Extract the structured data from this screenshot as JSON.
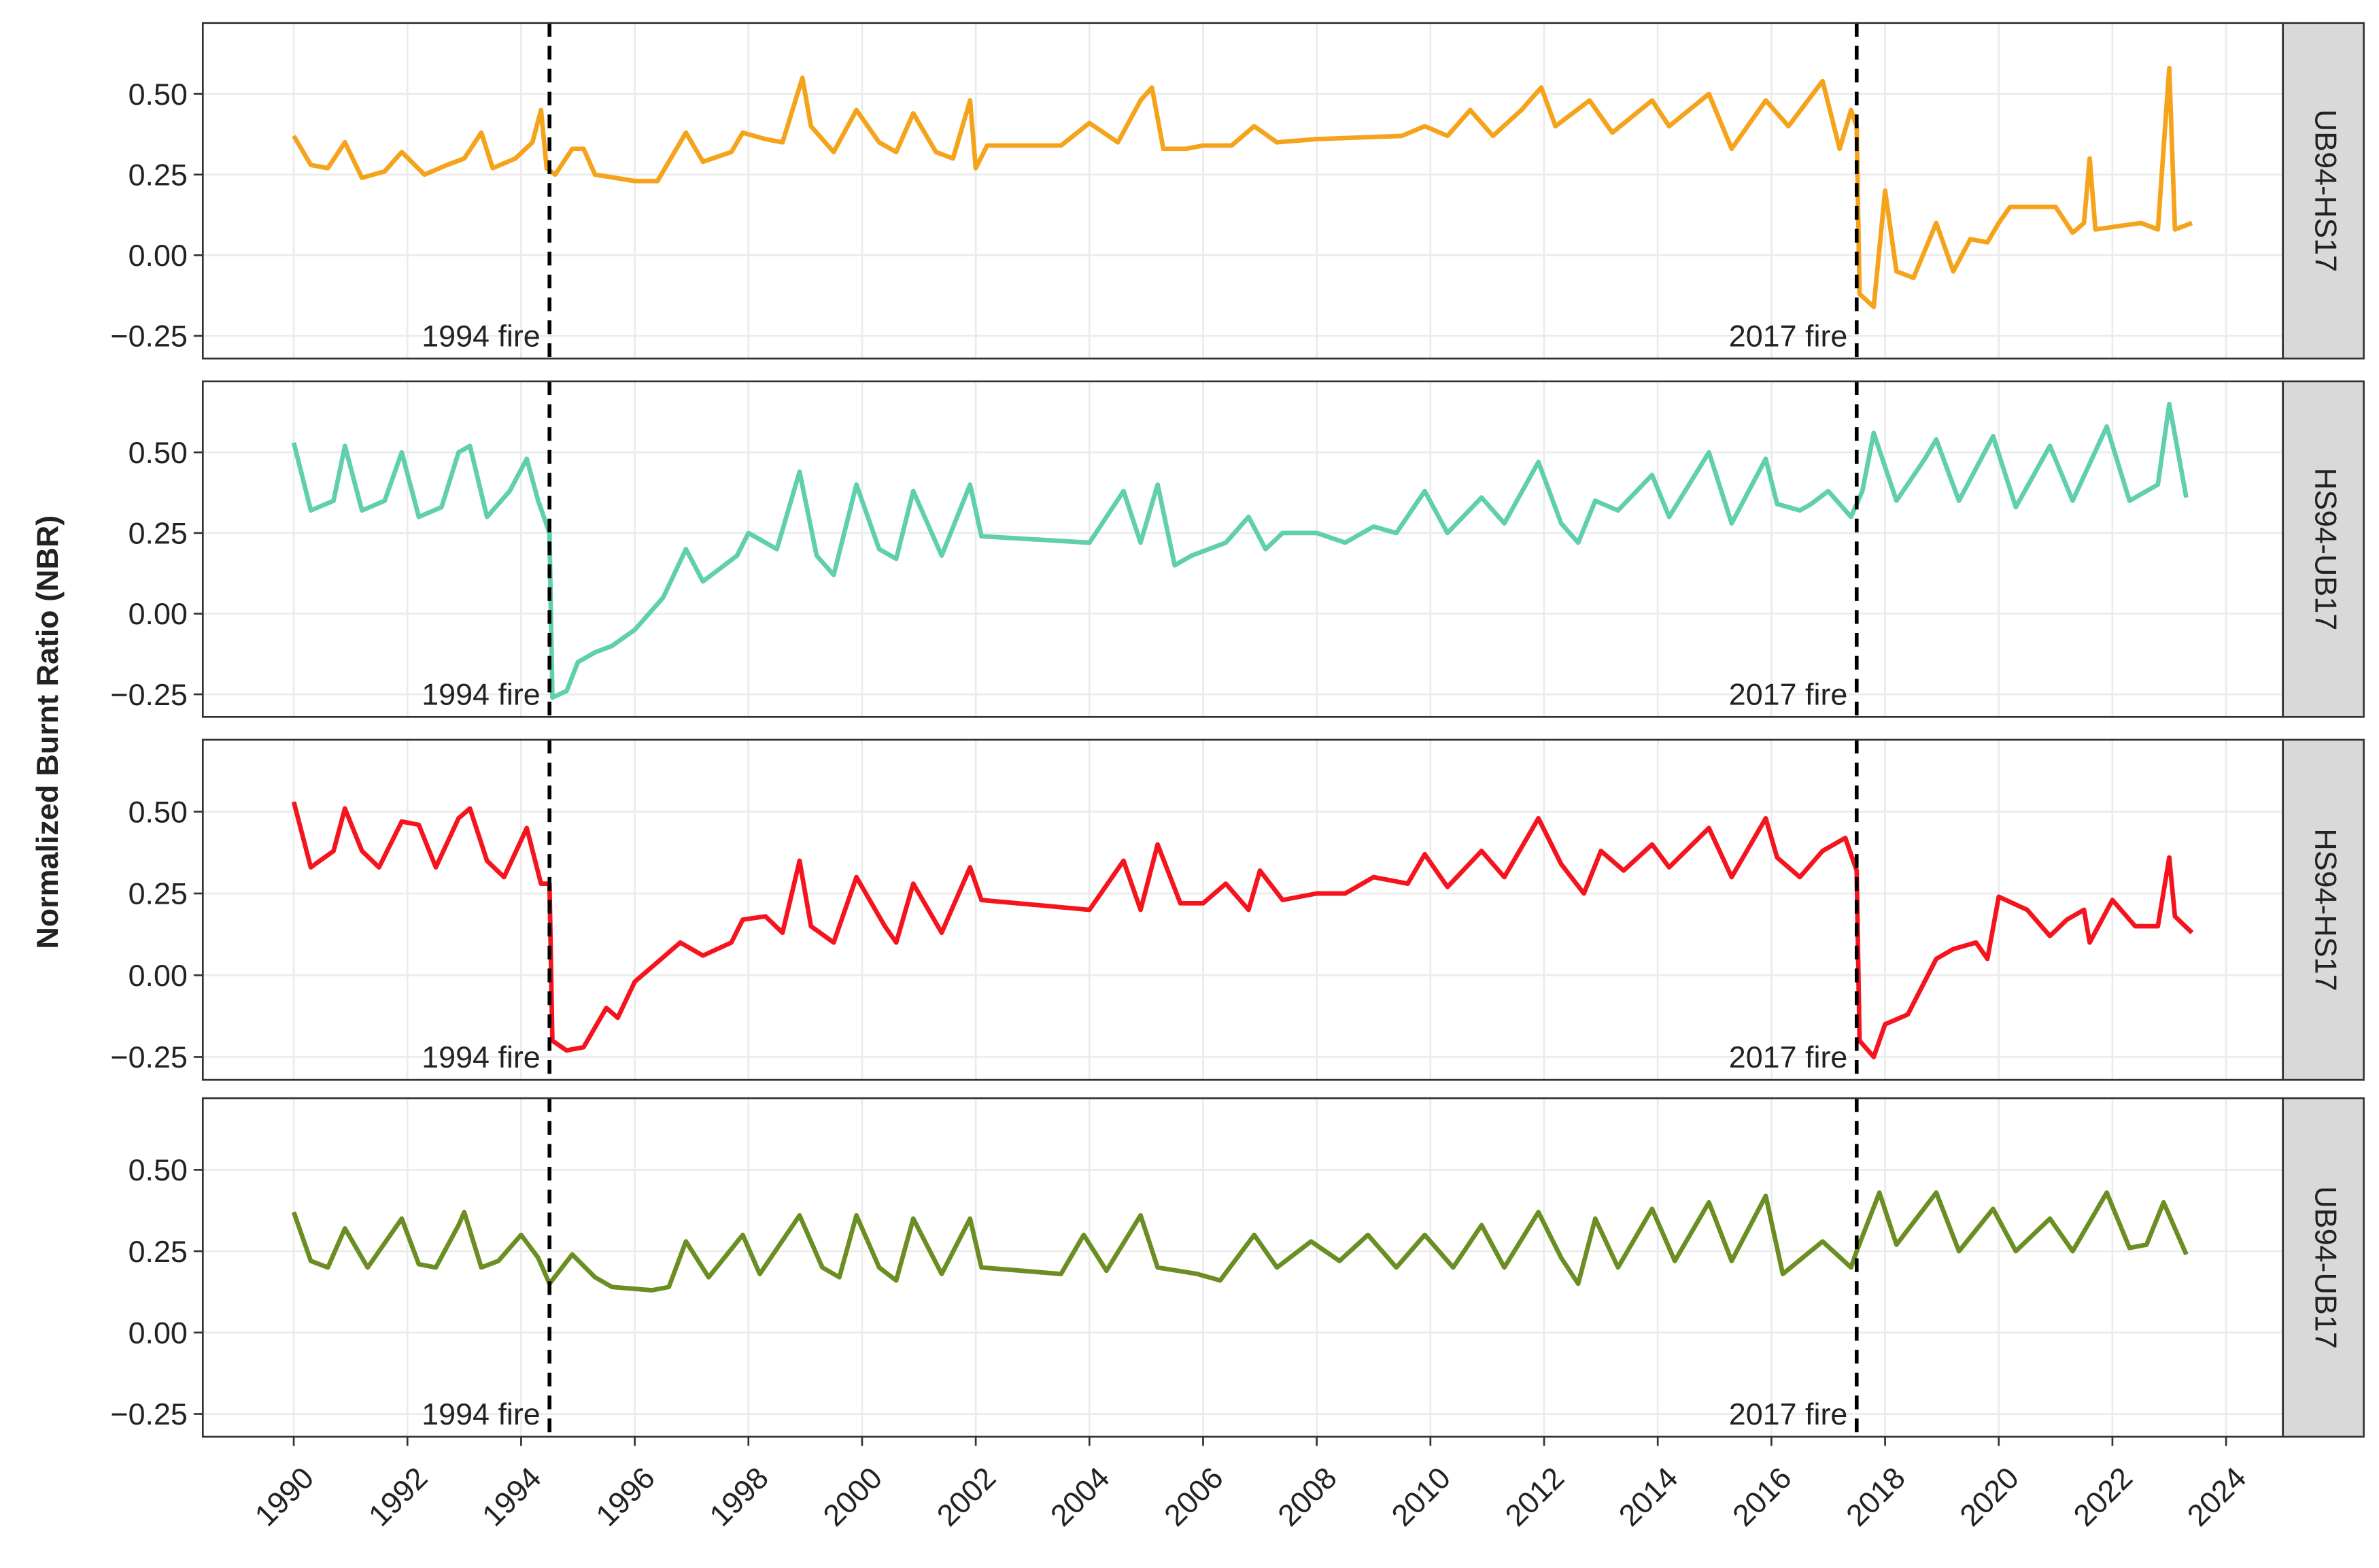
{
  "ylabel": "Normalized Burnt Ratio (NBR)",
  "chart_data": [
    {
      "type": "line",
      "xlim": [
        1988.4,
        2025.0
      ],
      "ylim": [
        -0.32,
        0.72
      ],
      "xticks": [
        1990,
        1992,
        1994,
        1996,
        1998,
        2000,
        2002,
        2004,
        2006,
        2008,
        2010,
        2012,
        2014,
        2016,
        2018,
        2020,
        2022,
        2024
      ],
      "yticks": [
        {
          "value": -0.25,
          "label": "−0.25"
        },
        {
          "value": 0,
          "label": "0.00"
        },
        {
          "value": 0.25,
          "label": "0.25"
        },
        {
          "value": 0.5,
          "label": "0.50"
        }
      ],
      "vlines": [
        {
          "x": 1994.5,
          "label": "1994 fire"
        },
        {
          "x": 2017.5,
          "label": "2017 fire"
        }
      ],
      "x": [
        1990.0,
        1990.3,
        1990.6,
        1990.9,
        1991.2,
        1991.6,
        1991.9,
        1992.3,
        1992.7,
        1993.0,
        1993.3,
        1993.5,
        1993.9,
        1994.2,
        1994.35,
        1994.45,
        1994.6,
        1994.9,
        1995.1,
        1995.3,
        1996.0,
        1996.4,
        1996.9,
        1997.2,
        1997.7,
        1997.9,
        1998.3,
        1998.6,
        1998.95,
        1999.1,
        1999.5,
        1999.9,
        2000.3,
        2000.6,
        2000.9,
        2001.3,
        2001.6,
        2001.9,
        2002.0,
        2002.2,
        2003.5,
        2004.0,
        2004.5,
        2004.9,
        2005.1,
        2005.3,
        2005.7,
        2006.0,
        2006.5,
        2006.9,
        2007.3,
        2008.0,
        2009.5,
        2009.9,
        2010.3,
        2010.7,
        2011.1,
        2011.6,
        2011.95,
        2012.2,
        2012.8,
        2013.2,
        2013.9,
        2014.2,
        2014.9,
        2015.3,
        2015.9,
        2016.3,
        2016.9,
        2017.2,
        2017.4,
        2017.5,
        2017.55,
        2017.8,
        2018.0,
        2018.2,
        2018.5,
        2018.9,
        2019.2,
        2019.5,
        2019.8,
        2020.0,
        2020.2,
        2021.0,
        2021.3,
        2021.5,
        2021.6,
        2021.7,
        2022.5,
        2022.8,
        2023.0,
        2023.1,
        2023.4
      ],
      "series": [
        {
          "name": "UB94-HS17",
          "color": "#f5a31b",
          "values": [
            0.37,
            0.28,
            0.27,
            0.35,
            0.24,
            0.26,
            0.32,
            0.25,
            0.28,
            0.3,
            0.38,
            0.27,
            0.3,
            0.35,
            0.45,
            0.27,
            0.25,
            0.33,
            0.33,
            0.25,
            0.23,
            0.23,
            0.38,
            0.29,
            0.32,
            0.38,
            0.36,
            0.35,
            0.55,
            0.4,
            0.32,
            0.45,
            0.35,
            0.32,
            0.44,
            0.32,
            0.3,
            0.48,
            0.27,
            0.34,
            0.34,
            0.41,
            0.35,
            0.48,
            0.52,
            0.33,
            0.33,
            0.34,
            0.34,
            0.4,
            0.35,
            0.36,
            0.37,
            0.4,
            0.37,
            0.45,
            0.37,
            0.45,
            0.52,
            0.4,
            0.48,
            0.38,
            0.48,
            0.4,
            0.5,
            0.33,
            0.48,
            0.4,
            0.54,
            0.33,
            0.45,
            0.4,
            -0.12,
            -0.16,
            0.2,
            -0.05,
            -0.07,
            0.1,
            -0.05,
            0.05,
            0.04,
            0.1,
            0.15,
            0.15,
            0.07,
            0.1,
            0.3,
            0.08,
            0.1,
            0.08,
            0.58,
            0.08,
            0.1
          ]
        }
      ]
    },
    {
      "type": "line",
      "xlim": [
        1988.4,
        2025.0
      ],
      "ylim": [
        -0.32,
        0.72
      ],
      "xticks": [
        1990,
        1992,
        1994,
        1996,
        1998,
        2000,
        2002,
        2004,
        2006,
        2008,
        2010,
        2012,
        2014,
        2016,
        2018,
        2020,
        2022,
        2024
      ],
      "yticks": [
        {
          "value": -0.25,
          "label": "−0.25"
        },
        {
          "value": 0,
          "label": "0.00"
        },
        {
          "value": 0.25,
          "label": "0.25"
        },
        {
          "value": 0.5,
          "label": "0.50"
        }
      ],
      "vlines": [
        {
          "x": 1994.5,
          "label": "1994 fire"
        },
        {
          "x": 2017.5,
          "label": "2017 fire"
        }
      ],
      "x": [
        1990.0,
        1990.3,
        1990.7,
        1990.9,
        1991.2,
        1991.6,
        1991.9,
        1992.2,
        1992.6,
        1992.9,
        1993.1,
        1993.4,
        1993.8,
        1994.1,
        1994.3,
        1994.5,
        1994.55,
        1994.8,
        1995.0,
        1995.3,
        1995.6,
        1996.0,
        1996.5,
        1996.9,
        1997.2,
        1997.8,
        1998.0,
        1998.5,
        1998.9,
        1999.2,
        1999.5,
        1999.9,
        2000.3,
        2000.6,
        2000.9,
        2001.4,
        2001.9,
        2002.1,
        2004.0,
        2004.6,
        2004.9,
        2005.2,
        2005.5,
        2005.8,
        2006.4,
        2006.8,
        2007.1,
        2007.4,
        2008.0,
        2008.5,
        2009.0,
        2009.4,
        2009.9,
        2010.3,
        2010.9,
        2011.3,
        2011.9,
        2012.3,
        2012.6,
        2012.9,
        2013.3,
        2013.9,
        2014.2,
        2014.9,
        2015.3,
        2015.9,
        2016.1,
        2016.5,
        2016.7,
        2017.0,
        2017.4,
        2017.6,
        2017.8,
        2018.2,
        2018.7,
        2018.9,
        2019.3,
        2019.9,
        2020.3,
        2020.9,
        2021.3,
        2021.9,
        2022.3,
        2022.8,
        2023.0,
        2023.3
      ],
      "series": [
        {
          "name": "HS94-UB17",
          "color": "#5fcfad",
          "values": [
            0.53,
            0.32,
            0.35,
            0.52,
            0.32,
            0.35,
            0.5,
            0.3,
            0.33,
            0.5,
            0.52,
            0.3,
            0.38,
            0.48,
            0.35,
            0.25,
            -0.26,
            -0.24,
            -0.15,
            -0.12,
            -0.1,
            -0.05,
            0.05,
            0.2,
            0.1,
            0.18,
            0.25,
            0.2,
            0.44,
            0.18,
            0.12,
            0.4,
            0.2,
            0.17,
            0.38,
            0.18,
            0.4,
            0.24,
            0.22,
            0.38,
            0.22,
            0.4,
            0.15,
            0.18,
            0.22,
            0.3,
            0.2,
            0.25,
            0.25,
            0.22,
            0.27,
            0.25,
            0.38,
            0.25,
            0.36,
            0.28,
            0.47,
            0.28,
            0.22,
            0.35,
            0.32,
            0.43,
            0.3,
            0.5,
            0.28,
            0.48,
            0.34,
            0.32,
            0.34,
            0.38,
            0.3,
            0.38,
            0.56,
            0.35,
            0.48,
            0.54,
            0.35,
            0.55,
            0.33,
            0.52,
            0.35,
            0.58,
            0.35,
            0.4,
            0.65,
            0.36
          ]
        }
      ]
    },
    {
      "type": "line",
      "xlim": [
        1988.4,
        2025.0
      ],
      "ylim": [
        -0.32,
        0.72
      ],
      "xticks": [
        1990,
        1992,
        1994,
        1996,
        1998,
        2000,
        2002,
        2004,
        2006,
        2008,
        2010,
        2012,
        2014,
        2016,
        2018,
        2020,
        2022,
        2024
      ],
      "yticks": [
        {
          "value": -0.25,
          "label": "−0.25"
        },
        {
          "value": 0,
          "label": "0.00"
        },
        {
          "value": 0.25,
          "label": "0.25"
        },
        {
          "value": 0.5,
          "label": "0.50"
        }
      ],
      "vlines": [
        {
          "x": 1994.5,
          "label": "1994 fire"
        },
        {
          "x": 2017.5,
          "label": "2017 fire"
        }
      ],
      "x": [
        1990.0,
        1990.3,
        1990.7,
        1990.9,
        1991.2,
        1991.5,
        1991.9,
        1992.2,
        1992.5,
        1992.9,
        1993.1,
        1993.4,
        1993.7,
        1994.1,
        1994.35,
        1994.5,
        1994.55,
        1994.8,
        1995.1,
        1995.5,
        1995.7,
        1996.0,
        1996.4,
        1996.8,
        1997.2,
        1997.7,
        1997.9,
        1998.3,
        1998.6,
        1998.9,
        1999.1,
        1999.5,
        1999.9,
        2000.4,
        2000.6,
        2000.9,
        2001.4,
        2001.9,
        2002.1,
        2004.0,
        2004.6,
        2004.9,
        2005.2,
        2005.6,
        2006.0,
        2006.4,
        2006.8,
        2007.0,
        2007.4,
        2008.0,
        2008.5,
        2009.0,
        2009.6,
        2009.9,
        2010.3,
        2010.9,
        2011.3,
        2011.9,
        2012.3,
        2012.7,
        2013.0,
        2013.4,
        2013.9,
        2014.2,
        2014.9,
        2015.3,
        2015.9,
        2016.1,
        2016.5,
        2016.9,
        2017.3,
        2017.5,
        2017.55,
        2017.8,
        2018.0,
        2018.4,
        2018.9,
        2019.2,
        2019.6,
        2019.8,
        2020.0,
        2020.5,
        2020.9,
        2021.2,
        2021.5,
        2021.6,
        2022.0,
        2022.4,
        2022.8,
        2023.0,
        2023.1,
        2023.4
      ],
      "series": [
        {
          "name": "HS94-HS17",
          "color": "#f5141e",
          "values": [
            0.53,
            0.33,
            0.38,
            0.51,
            0.38,
            0.33,
            0.47,
            0.46,
            0.33,
            0.48,
            0.51,
            0.35,
            0.3,
            0.45,
            0.28,
            0.28,
            -0.2,
            -0.23,
            -0.22,
            -0.1,
            -0.13,
            -0.02,
            0.04,
            0.1,
            0.06,
            0.1,
            0.17,
            0.18,
            0.13,
            0.35,
            0.15,
            0.1,
            0.3,
            0.15,
            0.1,
            0.28,
            0.13,
            0.33,
            0.23,
            0.2,
            0.35,
            0.2,
            0.4,
            0.22,
            0.22,
            0.28,
            0.2,
            0.32,
            0.23,
            0.25,
            0.25,
            0.3,
            0.28,
            0.37,
            0.27,
            0.38,
            0.3,
            0.48,
            0.34,
            0.25,
            0.38,
            0.32,
            0.4,
            0.33,
            0.45,
            0.3,
            0.48,
            0.36,
            0.3,
            0.38,
            0.42,
            0.32,
            -0.2,
            -0.25,
            -0.15,
            -0.12,
            0.05,
            0.08,
            0.1,
            0.05,
            0.24,
            0.2,
            0.12,
            0.17,
            0.2,
            0.1,
            0.23,
            0.15,
            0.15,
            0.36,
            0.18,
            0.13
          ]
        }
      ]
    },
    {
      "type": "line",
      "xlim": [
        1988.4,
        2025.0
      ],
      "ylim": [
        -0.32,
        0.72
      ],
      "xticks": [
        1990,
        1992,
        1994,
        1996,
        1998,
        2000,
        2002,
        2004,
        2006,
        2008,
        2010,
        2012,
        2014,
        2016,
        2018,
        2020,
        2022,
        2024
      ],
      "yticks": [
        {
          "value": -0.25,
          "label": "−0.25"
        },
        {
          "value": 0,
          "label": "0.00"
        },
        {
          "value": 0.25,
          "label": "0.25"
        },
        {
          "value": 0.5,
          "label": "0.50"
        }
      ],
      "vlines": [
        {
          "x": 1994.5,
          "label": "1994 fire"
        },
        {
          "x": 2017.5,
          "label": "2017 fire"
        }
      ],
      "x": [
        1990.0,
        1990.3,
        1990.6,
        1990.9,
        1991.3,
        1991.9,
        1992.2,
        1992.5,
        1992.9,
        1993.0,
        1993.3,
        1993.6,
        1994.0,
        1994.3,
        1994.5,
        1994.9,
        1995.3,
        1995.6,
        1996.3,
        1996.6,
        1996.9,
        1997.3,
        1997.9,
        1998.2,
        1998.9,
        1999.3,
        1999.6,
        1999.9,
        2000.3,
        2000.6,
        2000.9,
        2001.4,
        2001.9,
        2002.1,
        2003.5,
        2003.9,
        2004.3,
        2004.9,
        2005.2,
        2005.9,
        2006.3,
        2006.9,
        2007.3,
        2007.9,
        2008.4,
        2008.9,
        2009.4,
        2009.9,
        2010.4,
        2010.9,
        2011.3,
        2011.9,
        2012.3,
        2012.6,
        2012.9,
        2013.3,
        2013.9,
        2014.3,
        2014.9,
        2015.3,
        2015.9,
        2016.2,
        2016.9,
        2017.4,
        2017.5,
        2017.9,
        2018.2,
        2018.9,
        2019.3,
        2019.9,
        2020.3,
        2020.9,
        2021.3,
        2021.9,
        2022.3,
        2022.6,
        2022.9,
        2023.3
      ],
      "series": [
        {
          "name": "UB94-UB17",
          "color": "#6b8e23",
          "values": [
            0.37,
            0.22,
            0.2,
            0.32,
            0.2,
            0.35,
            0.21,
            0.2,
            0.33,
            0.37,
            0.2,
            0.22,
            0.3,
            0.23,
            0.15,
            0.24,
            0.17,
            0.14,
            0.13,
            0.14,
            0.28,
            0.17,
            0.3,
            0.18,
            0.36,
            0.2,
            0.17,
            0.36,
            0.2,
            0.16,
            0.35,
            0.18,
            0.35,
            0.2,
            0.18,
            0.3,
            0.19,
            0.36,
            0.2,
            0.18,
            0.16,
            0.3,
            0.2,
            0.28,
            0.22,
            0.3,
            0.2,
            0.3,
            0.2,
            0.33,
            0.2,
            0.37,
            0.23,
            0.15,
            0.35,
            0.2,
            0.38,
            0.22,
            0.4,
            0.22,
            0.42,
            0.18,
            0.28,
            0.2,
            0.25,
            0.43,
            0.27,
            0.43,
            0.25,
            0.38,
            0.25,
            0.35,
            0.25,
            0.43,
            0.26,
            0.27,
            0.4,
            0.24
          ]
        }
      ]
    }
  ]
}
